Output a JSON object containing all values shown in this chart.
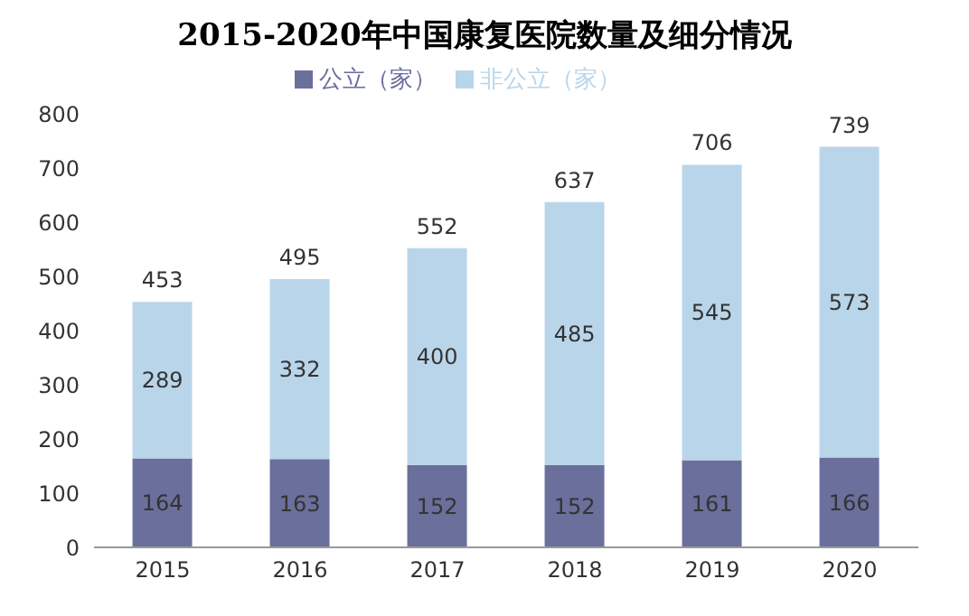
{
  "chart_data": {
    "type": "bar",
    "title": "2015-2020年中国康复医院数量及细分情况",
    "categories": [
      "2015",
      "2016",
      "2017",
      "2018",
      "2019",
      "2020"
    ],
    "stacked": true,
    "series": [
      {
        "name": "公立（家）",
        "color": "#6a6f9c",
        "values": [
          164,
          163,
          152,
          152,
          161,
          166
        ]
      },
      {
        "name": "非公立（家）",
        "color": "#b9d5ea",
        "values": [
          289,
          332,
          400,
          485,
          545,
          573
        ]
      }
    ],
    "totals": [
      "453",
      "495",
      "552",
      "637",
      "706",
      "739"
    ],
    "data_labels": true,
    "legend": "top",
    "grid": false,
    "ylim": [
      0,
      800
    ],
    "yticks": [
      0,
      100,
      200,
      300,
      400,
      500,
      600,
      700,
      800
    ]
  }
}
